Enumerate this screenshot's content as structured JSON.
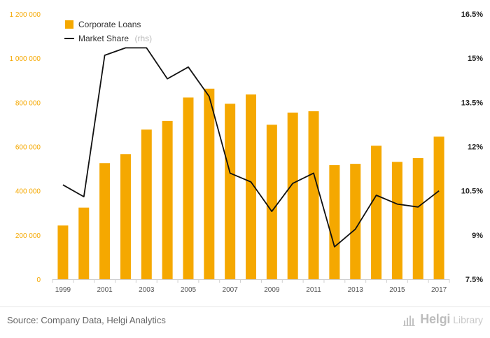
{
  "chart_data": {
    "type": "bar",
    "combo": true,
    "categories": [
      "1999",
      "2000",
      "2001",
      "2002",
      "2003",
      "2004",
      "2005",
      "2006",
      "2007",
      "2008",
      "2009",
      "2010",
      "2011",
      "2012",
      "2013",
      "2014",
      "2015",
      "2016",
      "2017"
    ],
    "x_tick_labels": [
      "1999",
      "2001",
      "2003",
      "2005",
      "2007",
      "2009",
      "2011",
      "2013",
      "2015",
      "2017"
    ],
    "series": [
      {
        "name": "Corporate Loans",
        "type": "bar",
        "axis": "left",
        "color": "#f5a800",
        "values": [
          243000,
          324000,
          525000,
          566000,
          677000,
          716000,
          822000,
          862000,
          794000,
          836000,
          699000,
          754000,
          760000,
          516000,
          522000,
          604000,
          531000,
          548000,
          645000
        ]
      },
      {
        "name": "Market Share",
        "axis_note": "(rhs)",
        "type": "line",
        "axis": "right",
        "color": "#111111",
        "values": [
          10.7,
          10.3,
          15.1,
          15.35,
          15.35,
          14.3,
          14.7,
          13.7,
          11.1,
          10.8,
          9.8,
          10.75,
          11.1,
          8.6,
          9.2,
          10.35,
          10.05,
          9.95,
          10.5
        ]
      }
    ],
    "y_left": {
      "min": 0,
      "max": 1200000,
      "ticks": [
        0,
        200000,
        400000,
        600000,
        800000,
        1000000,
        1200000
      ],
      "tick_labels": [
        "0",
        "200 000",
        "400 000",
        "600 000",
        "800 000",
        "1 000 000",
        "1 200 000"
      ]
    },
    "y_right": {
      "min": 7.5,
      "max": 16.5,
      "ticks": [
        7.5,
        9,
        10.5,
        12,
        13.5,
        15,
        16.5
      ],
      "tick_labels": [
        "7.5%",
        "9%",
        "10.5%",
        "12%",
        "13.5%",
        "15%",
        "16.5%"
      ]
    },
    "grid": false,
    "legend_position": "top-left",
    "title": "",
    "xlabel": "",
    "ylabel": ""
  },
  "footer": {
    "source": "Source: Company Data, Helgi Analytics",
    "brand_name": "Helgi",
    "brand_suffix": "Library",
    "brand_icon": "bar-chart-logo-icon"
  }
}
